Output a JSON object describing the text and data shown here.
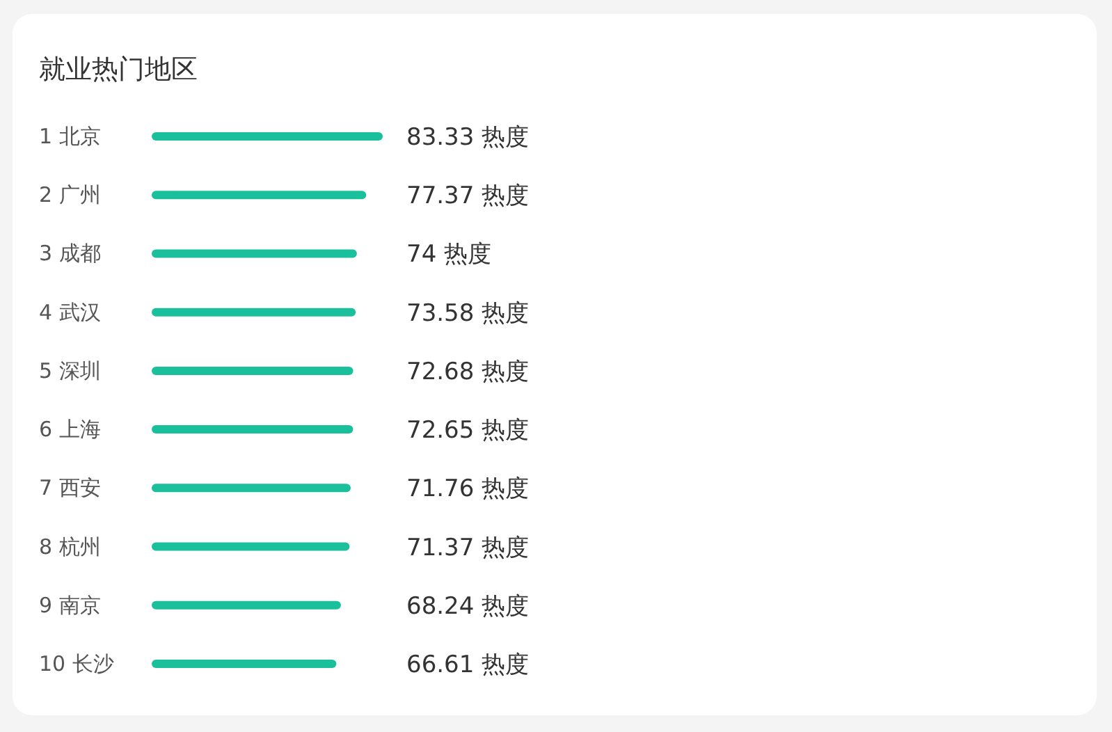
{
  "chart_data": {
    "type": "bar",
    "orientation": "horizontal",
    "title": "就业热门地区",
    "categories": [
      "1 北京",
      "2 广州",
      "3 成都",
      "4 武汉",
      "5 深圳",
      "6 上海",
      "7 西安",
      "8 杭州",
      "9 南京",
      "10 长沙"
    ],
    "values": [
      83.33,
      77.37,
      74,
      73.58,
      72.68,
      72.65,
      71.76,
      71.37,
      68.24,
      66.61
    ],
    "value_labels": [
      "83.33 热度",
      "77.37 热度",
      "74 热度",
      "73.58 热度",
      "72.68 热度",
      "72.65 热度",
      "71.76 热度",
      "71.37 热度",
      "68.24 热度",
      "66.61 热度"
    ],
    "color": "#1abf9b"
  }
}
